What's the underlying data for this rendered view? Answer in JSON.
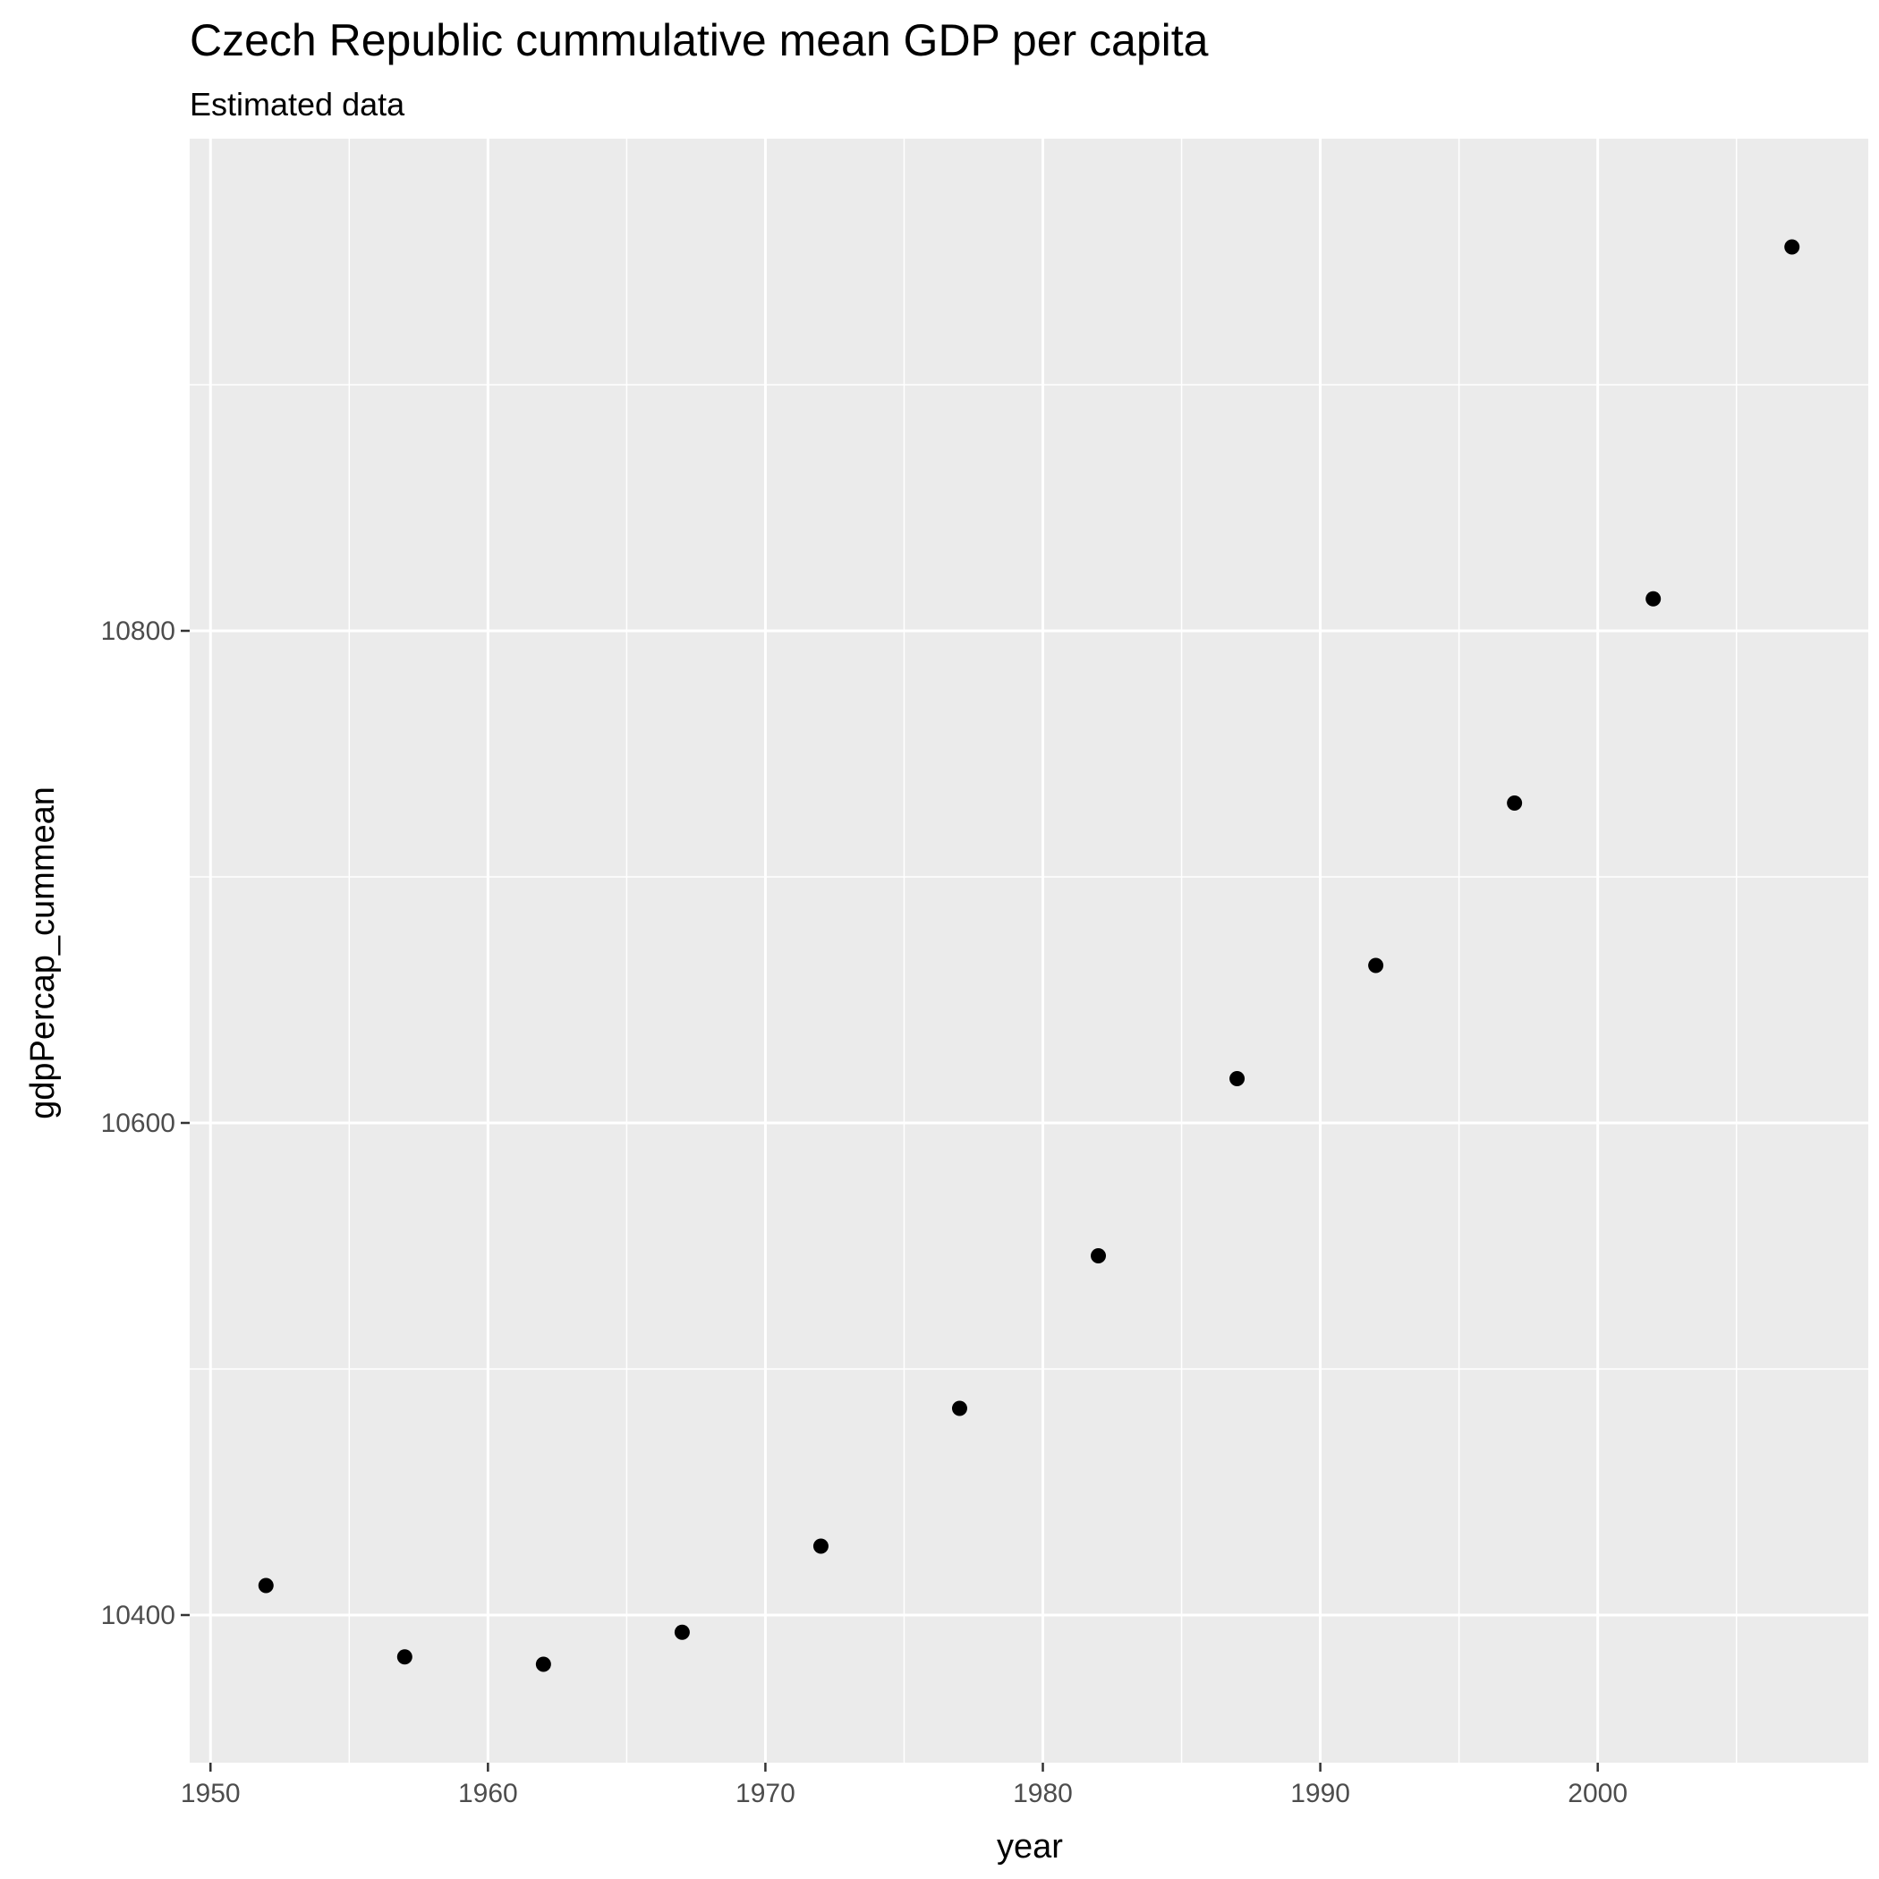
{
  "chart_data": {
    "type": "scatter",
    "title": "Czech Republic  cummulative mean GDP per capita",
    "subtitle": "Estimated data",
    "xlabel": "year",
    "ylabel": "gdpPercap_cummean",
    "x": [
      1952,
      1957,
      1962,
      1967,
      1972,
      1977,
      1982,
      1987,
      1992,
      1997,
      2002,
      2007
    ],
    "y": [
      10412,
      10383,
      10380,
      10393,
      10428,
      10484,
      10546,
      10618,
      10664,
      10730,
      10813,
      10956
    ],
    "xlim": [
      1949.25,
      2009.75
    ],
    "ylim": [
      10340,
      11000
    ],
    "x_major_ticks": [
      1950,
      1960,
      1970,
      1980,
      1990,
      2000
    ],
    "x_minor_ticks": [
      1955,
      1965,
      1975,
      1985,
      1995,
      2005
    ],
    "y_major_ticks": [
      10400,
      10600,
      10800
    ],
    "y_minor_ticks": [
      10500,
      10700,
      10900
    ],
    "x_tick_labels": [
      "1950",
      "1960",
      "1970",
      "1980",
      "1990",
      "2000"
    ],
    "y_tick_labels": [
      "10400",
      "10600",
      "10800"
    ],
    "grid": true,
    "legend": "none",
    "colors": {
      "panel": "#ebebeb",
      "grid": "#ffffff",
      "point": "#000000",
      "tick_text": "#4d4d4d",
      "tick_mark": "#333333"
    }
  }
}
